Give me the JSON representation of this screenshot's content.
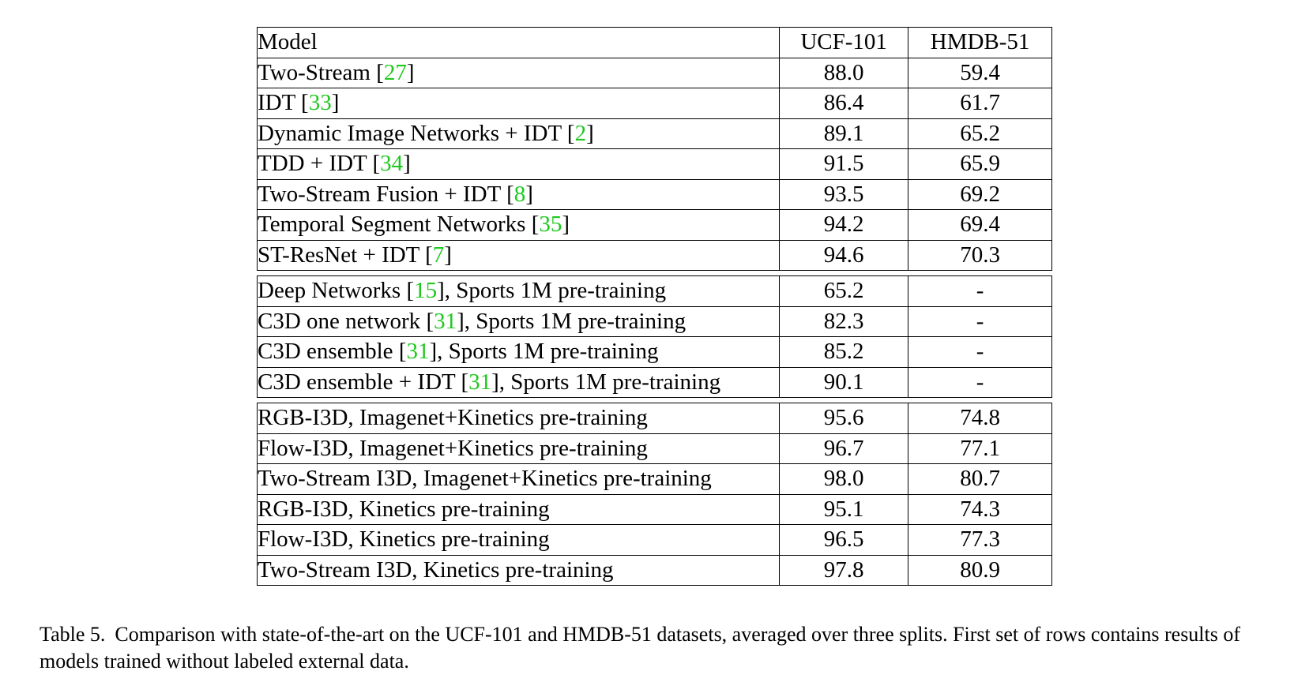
{
  "table": {
    "header": {
      "model": "Model",
      "ucf": "UCF-101",
      "hmdb": "HMDB-51"
    },
    "groups": [
      {
        "rows": [
          {
            "name": "Two-Stream",
            "ref": "27",
            "suffix": "",
            "ucf": "88.0",
            "hmdb": "59.4"
          },
          {
            "name": "IDT",
            "ref": "33",
            "suffix": "",
            "ucf": "86.4",
            "hmdb": "61.7"
          },
          {
            "name": "Dynamic Image Networks + IDT",
            "ref": "2",
            "suffix": "",
            "ucf": "89.1",
            "hmdb": "65.2"
          },
          {
            "name": "TDD + IDT",
            "ref": "34",
            "suffix": "",
            "ucf": "91.5",
            "hmdb": "65.9"
          },
          {
            "name": "Two-Stream Fusion + IDT",
            "ref": "8",
            "suffix": "",
            "ucf": "93.5",
            "hmdb": "69.2"
          },
          {
            "name": "Temporal Segment Networks",
            "ref": "35",
            "suffix": "",
            "ucf": "94.2",
            "hmdb": "69.4"
          },
          {
            "name": "ST-ResNet + IDT",
            "ref": "7",
            "suffix": "",
            "ucf": "94.6",
            "hmdb": "70.3"
          }
        ]
      },
      {
        "rows": [
          {
            "name": "Deep Networks",
            "ref": "15",
            "suffix": ", Sports 1M pre-training",
            "ucf": "65.2",
            "hmdb": "-"
          },
          {
            "name": "C3D one network",
            "ref": "31",
            "suffix": ", Sports 1M pre-training",
            "ucf": "82.3",
            "hmdb": "-"
          },
          {
            "name": "C3D ensemble",
            "ref": "31",
            "suffix": ", Sports 1M pre-training",
            "ucf": "85.2",
            "hmdb": "-"
          },
          {
            "name": "C3D ensemble + IDT",
            "ref": "31",
            "suffix": ", Sports 1M pre-training",
            "ucf": "90.1",
            "hmdb": "-"
          }
        ]
      },
      {
        "rows": [
          {
            "name": "RGB-I3D, Imagenet+Kinetics pre-training",
            "ref": "",
            "suffix": "",
            "ucf": "95.6",
            "hmdb": "74.8"
          },
          {
            "name": "Flow-I3D, Imagenet+Kinetics pre-training",
            "ref": "",
            "suffix": "",
            "ucf": "96.7",
            "hmdb": "77.1"
          },
          {
            "name": "Two-Stream I3D, Imagenet+Kinetics pre-training",
            "ref": "",
            "suffix": "",
            "ucf": "98.0",
            "hmdb": "80.7",
            "bold": "ucf"
          },
          {
            "name": "RGB-I3D, Kinetics pre-training",
            "ref": "",
            "suffix": "",
            "ucf": "95.1",
            "hmdb": "74.3"
          },
          {
            "name": "Flow-I3D, Kinetics pre-training",
            "ref": "",
            "suffix": "",
            "ucf": "96.5",
            "hmdb": "77.3"
          },
          {
            "name": "Two-Stream I3D, Kinetics pre-training",
            "ref": "",
            "suffix": "",
            "ucf": "97.8",
            "hmdb": "80.9",
            "bold": "hmdb"
          }
        ]
      }
    ]
  },
  "caption": {
    "label": "Table 5.",
    "text": "Comparison with state-of-the-art on the UCF-101 and HMDB-51 datasets, averaged over three splits. First set of rows contains results of models trained without labeled external data."
  },
  "colors": {
    "reference_link": "#1ec81e"
  }
}
